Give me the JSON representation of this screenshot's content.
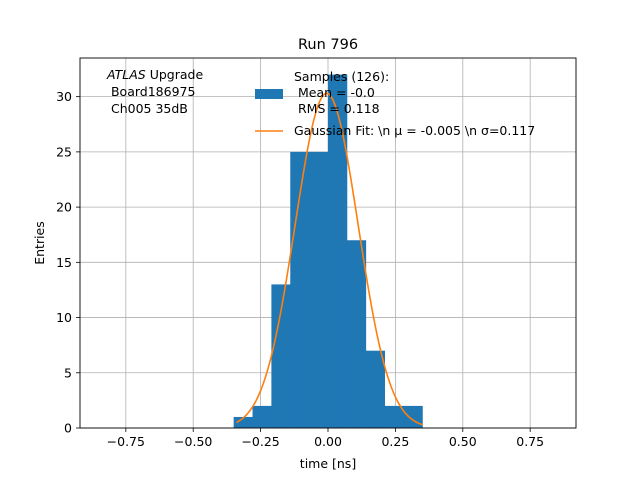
{
  "chart_data": {
    "type": "bar",
    "title": "Run 796",
    "xlabel": "time [ns]",
    "ylabel": "Entries",
    "xlim": [
      -0.92,
      0.92
    ],
    "ylim": [
      0,
      33.5
    ],
    "grid": true,
    "xticks": [
      "−0.75",
      "−0.50",
      "−0.25",
      "0.00",
      "0.25",
      "0.50",
      "0.75"
    ],
    "xtick_values": [
      -0.75,
      -0.5,
      -0.25,
      0.0,
      0.25,
      0.5,
      0.75
    ],
    "yticks": [
      "0",
      "5",
      "10",
      "15",
      "20",
      "25",
      "30"
    ],
    "ytick_values": [
      0,
      5,
      10,
      15,
      20,
      25,
      30
    ],
    "histogram": {
      "name": "Samples (126):\n Mean = -0.0\n RMS = 0.118",
      "color": "#1f77b4",
      "bin_edges": [
        -0.35,
        -0.28,
        -0.21,
        -0.14,
        -0.07,
        0.0,
        0.07,
        0.14,
        0.21,
        0.28,
        0.35
      ],
      "counts": [
        1,
        2,
        13,
        25,
        25,
        32,
        17,
        7,
        2,
        2
      ]
    },
    "fit": {
      "name": "Gaussian Fit: \\n $\\mu$ = -0.005 \\n $\\sigma$=0.117",
      "color": "#ff7f0e",
      "mu": -0.005,
      "sigma": 0.117,
      "amplitude": 30.3,
      "x_range": [
        -0.34,
        0.35
      ]
    },
    "legend": {
      "placement": "top-right",
      "entries": [
        {
          "lines": [
            "Samples (126):",
            " Mean = -0.0",
            " RMS = 0.118"
          ],
          "marker": "patch",
          "color": "#1f77b4"
        },
        {
          "lines": [
            "Gaussian Fit: \\n μ = -0.005 \\n σ=0.117"
          ],
          "marker": "line",
          "color": "#ff7f0e"
        }
      ]
    },
    "annotation": {
      "lines": [
        "ATLAS Upgrade",
        " Board186975",
        " Ch005 35dB"
      ],
      "italic_word": "ATLAS"
    }
  }
}
